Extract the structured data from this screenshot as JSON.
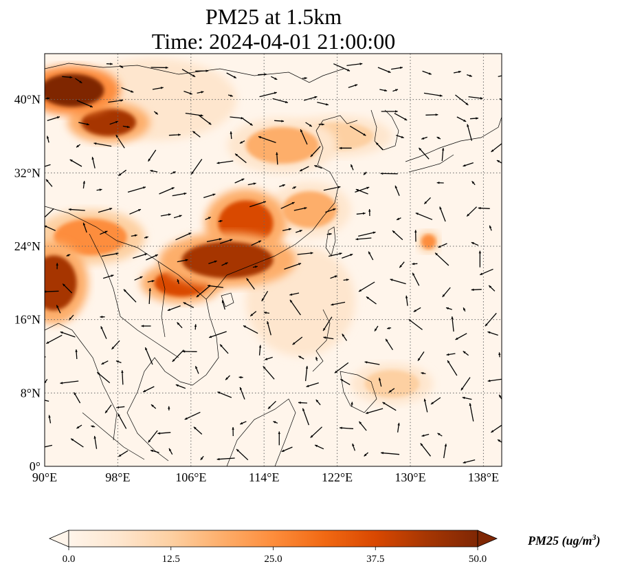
{
  "title": {
    "line1": "PM25 at 1.5km",
    "line2": "Time: 2024-04-01 21:00:00"
  },
  "map": {
    "variable": "PM25",
    "level": "1.5km",
    "time": "2024-04-01 21:00:00",
    "extent": {
      "lon_min": 90,
      "lon_max": 140,
      "lat_min": 0,
      "lat_max": 45
    },
    "gridlines": "dotted",
    "lat_ticks": [
      {
        "value": 0,
        "label": "0°"
      },
      {
        "value": 8,
        "label": "8°N"
      },
      {
        "value": 16,
        "label": "16°N"
      },
      {
        "value": 24,
        "label": "24°N"
      },
      {
        "value": 32,
        "label": "32°N"
      },
      {
        "value": 40,
        "label": "40°N"
      }
    ],
    "lon_ticks": [
      {
        "value": 90,
        "label": "90°E"
      },
      {
        "value": 98,
        "label": "98°E"
      },
      {
        "value": 106,
        "label": "106°E"
      },
      {
        "value": 114,
        "label": "114°E"
      },
      {
        "value": 122,
        "label": "122°E"
      },
      {
        "value": 130,
        "label": "130°E"
      },
      {
        "value": 138,
        "label": "138°E"
      }
    ],
    "hotspots": [
      {
        "lon": 93,
        "lat": 41,
        "rx": 3.5,
        "ry": 1.8,
        "value": 50
      },
      {
        "lon": 97,
        "lat": 37.5,
        "rx": 3,
        "ry": 1.5,
        "value": 46
      },
      {
        "lon": 91,
        "lat": 20,
        "rx": 2.5,
        "ry": 3,
        "value": 44
      },
      {
        "lon": 110,
        "lat": 22.5,
        "rx": 5,
        "ry": 2,
        "value": 42
      },
      {
        "lon": 105,
        "lat": 20,
        "rx": 3,
        "ry": 1.5,
        "value": 38
      },
      {
        "lon": 112,
        "lat": 26.5,
        "rx": 3,
        "ry": 2.5,
        "value": 36
      },
      {
        "lon": 95,
        "lat": 25,
        "rx": 4,
        "ry": 2,
        "value": 22
      },
      {
        "lon": 116,
        "lat": 35,
        "rx": 4,
        "ry": 2,
        "value": 20
      },
      {
        "lon": 122,
        "lat": 36,
        "rx": 4,
        "ry": 1.5,
        "value": 14
      },
      {
        "lon": 119,
        "lat": 28,
        "rx": 3,
        "ry": 2,
        "value": 20
      },
      {
        "lon": 128,
        "lat": 9,
        "rx": 3,
        "ry": 1.5,
        "value": 10
      },
      {
        "lon": 132,
        "lat": 24.5,
        "rx": 0.8,
        "ry": 0.8,
        "value": 22
      },
      {
        "lon": 102,
        "lat": 40,
        "rx": 6,
        "ry": 3,
        "value": 8
      },
      {
        "lon": 118,
        "lat": 18,
        "rx": 4,
        "ry": 4,
        "value": 7
      }
    ],
    "wind_arrows_description": "vector field of wind arrows",
    "coast_color": "#000000"
  },
  "colorbar": {
    "title": "PM25 (ug/m",
    "title_sup": "3",
    "title_end": ")",
    "min": 0,
    "max": 50,
    "ticks": [
      "0.0",
      "12.5",
      "25.0",
      "37.5",
      "50.0"
    ],
    "colors": [
      "#fff5eb",
      "#fee6ce",
      "#fdd0a2",
      "#fdae6b",
      "#fd8d3c",
      "#f16913",
      "#d94801",
      "#a63603",
      "#7f2704"
    ],
    "extend": "both"
  }
}
